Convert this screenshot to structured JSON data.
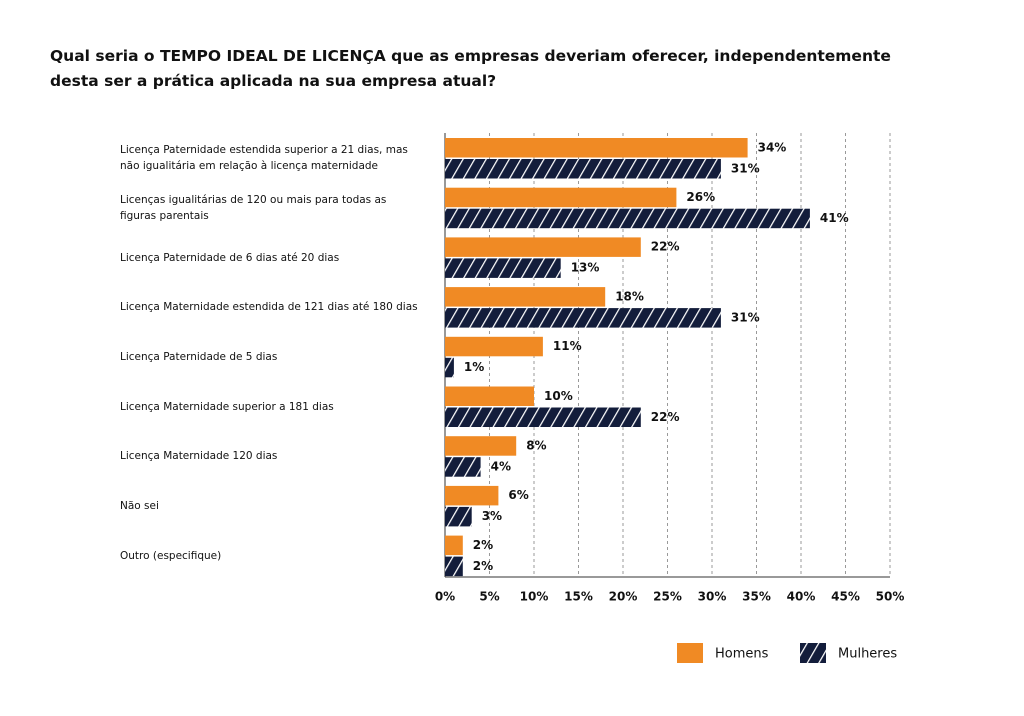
{
  "chart_data": {
    "type": "barh",
    "title": "Qual seria o TEMPO IDEAL DE LICENÇA que as empresas deveriam oferecer, independentemente desta ser a prática aplicada na sua empresa atual?",
    "categories": [
      "Licença Paternidade estendida superior a 21 dias, mas não igualitária em relação à licença maternidade",
      "Licenças igualitárias de 120 ou mais para todas as figuras parentais",
      "Licença Paternidade de 6 dias até 20 dias",
      "Licença Maternidade estendida de 121 dias até 180 dias",
      "Licença Paternidade de 5 dias",
      "Licença Maternidade superior a 181 dias",
      "Licença Maternidade 120 dias",
      "Não sei",
      "Outro (especifique)"
    ],
    "series": [
      {
        "name": "Homens",
        "color": "#f08a24",
        "values": [
          34,
          26,
          22,
          18,
          11,
          10,
          8,
          6,
          2
        ],
        "value_labels": [
          "34%",
          "26%",
          "22%",
          "18%",
          "11%",
          "10%",
          "8%",
          "6%",
          "2%"
        ]
      },
      {
        "name": "Mulheres",
        "color": "#131d3b",
        "pattern": "hatch",
        "values": [
          31,
          41,
          13,
          31,
          1,
          22,
          4,
          3,
          2
        ],
        "value_labels": [
          "31%",
          "41%",
          "13%",
          "31%",
          "1%",
          "22%",
          "4%",
          "3%",
          "2%"
        ]
      }
    ],
    "xlim": [
      0,
      50
    ],
    "xticks": [
      {
        "value": 0,
        "label": "0%"
      },
      {
        "value": 5,
        "label": "5%"
      },
      {
        "value": 10,
        "label": "10%"
      },
      {
        "value": 15,
        "label": "15%"
      },
      {
        "value": 20,
        "label": "20%"
      },
      {
        "value": 25,
        "label": "25%"
      },
      {
        "value": 30,
        "label": "30%"
      },
      {
        "value": 35,
        "label": "35%"
      },
      {
        "value": 40,
        "label": "40%"
      },
      {
        "value": 45,
        "label": "45%"
      },
      {
        "value": 50,
        "label": "50%"
      }
    ],
    "grid": true,
    "legend": "bottom-right"
  }
}
